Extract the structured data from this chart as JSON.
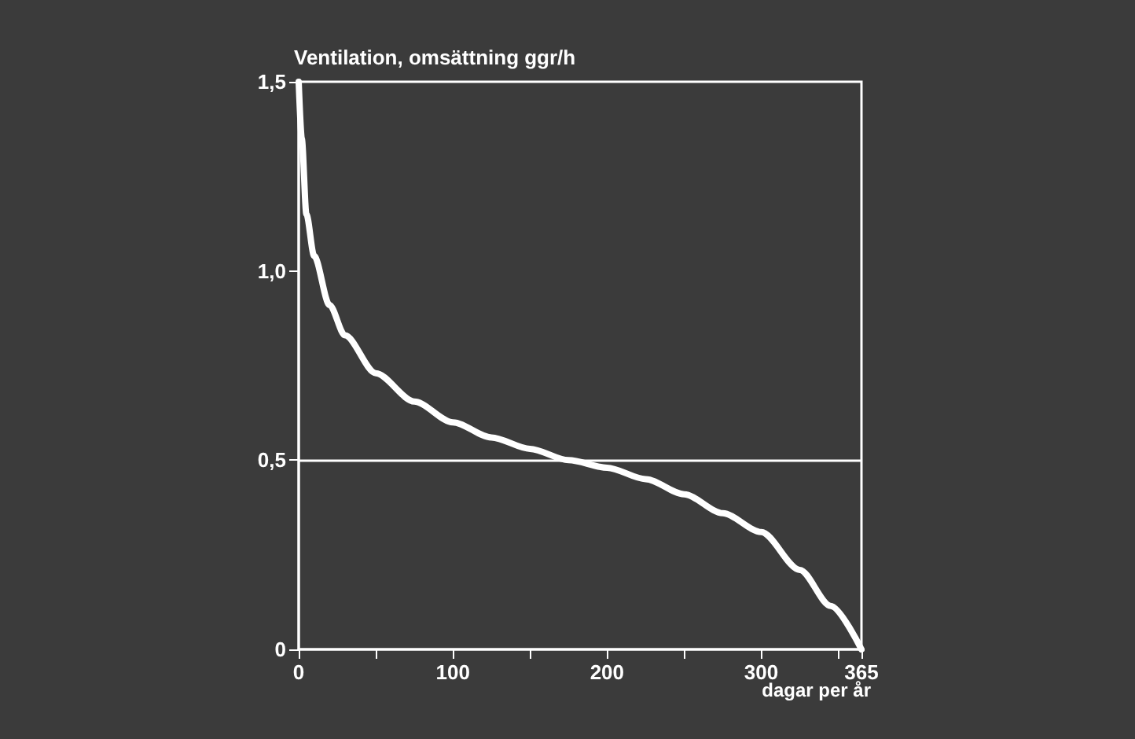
{
  "chart_data": {
    "type": "line",
    "ylabel": "Ventilation, omsättning ggr/h",
    "xlabel": "dagar per år",
    "x": [
      0,
      2,
      5,
      10,
      20,
      30,
      50,
      75,
      100,
      125,
      150,
      175,
      200,
      225,
      250,
      275,
      300,
      325,
      345,
      365
    ],
    "series": [
      {
        "color": "#ffffff",
        "values": [
          1.5,
          1.35,
          1.15,
          1.04,
          0.91,
          0.83,
          0.73,
          0.655,
          0.6,
          0.56,
          0.53,
          0.5,
          0.48,
          0.45,
          0.41,
          0.36,
          0.31,
          0.21,
          0.115,
          0
        ]
      }
    ],
    "xlim": [
      0,
      365
    ],
    "xticks": [
      0,
      {
        "value": 50,
        "label": null
      },
      100,
      {
        "value": 150,
        "label": null
      },
      200,
      {
        "value": 250,
        "label": null
      },
      300,
      {
        "value": 350,
        "label": null
      },
      365
    ],
    "ylim": [
      0,
      1.5
    ],
    "yticks": [
      {
        "value": 0,
        "label": "0"
      },
      {
        "value": 0.5,
        "label": "0,5"
      },
      {
        "value": 1,
        "label": "1,0"
      },
      {
        "value": 1.5,
        "label": "1,5"
      }
    ],
    "ref_lines": [
      {
        "axis": "y",
        "value": 0.5,
        "color": "#ffffff"
      }
    ],
    "grid": false,
    "marker": "none",
    "line_style": "solid"
  }
}
